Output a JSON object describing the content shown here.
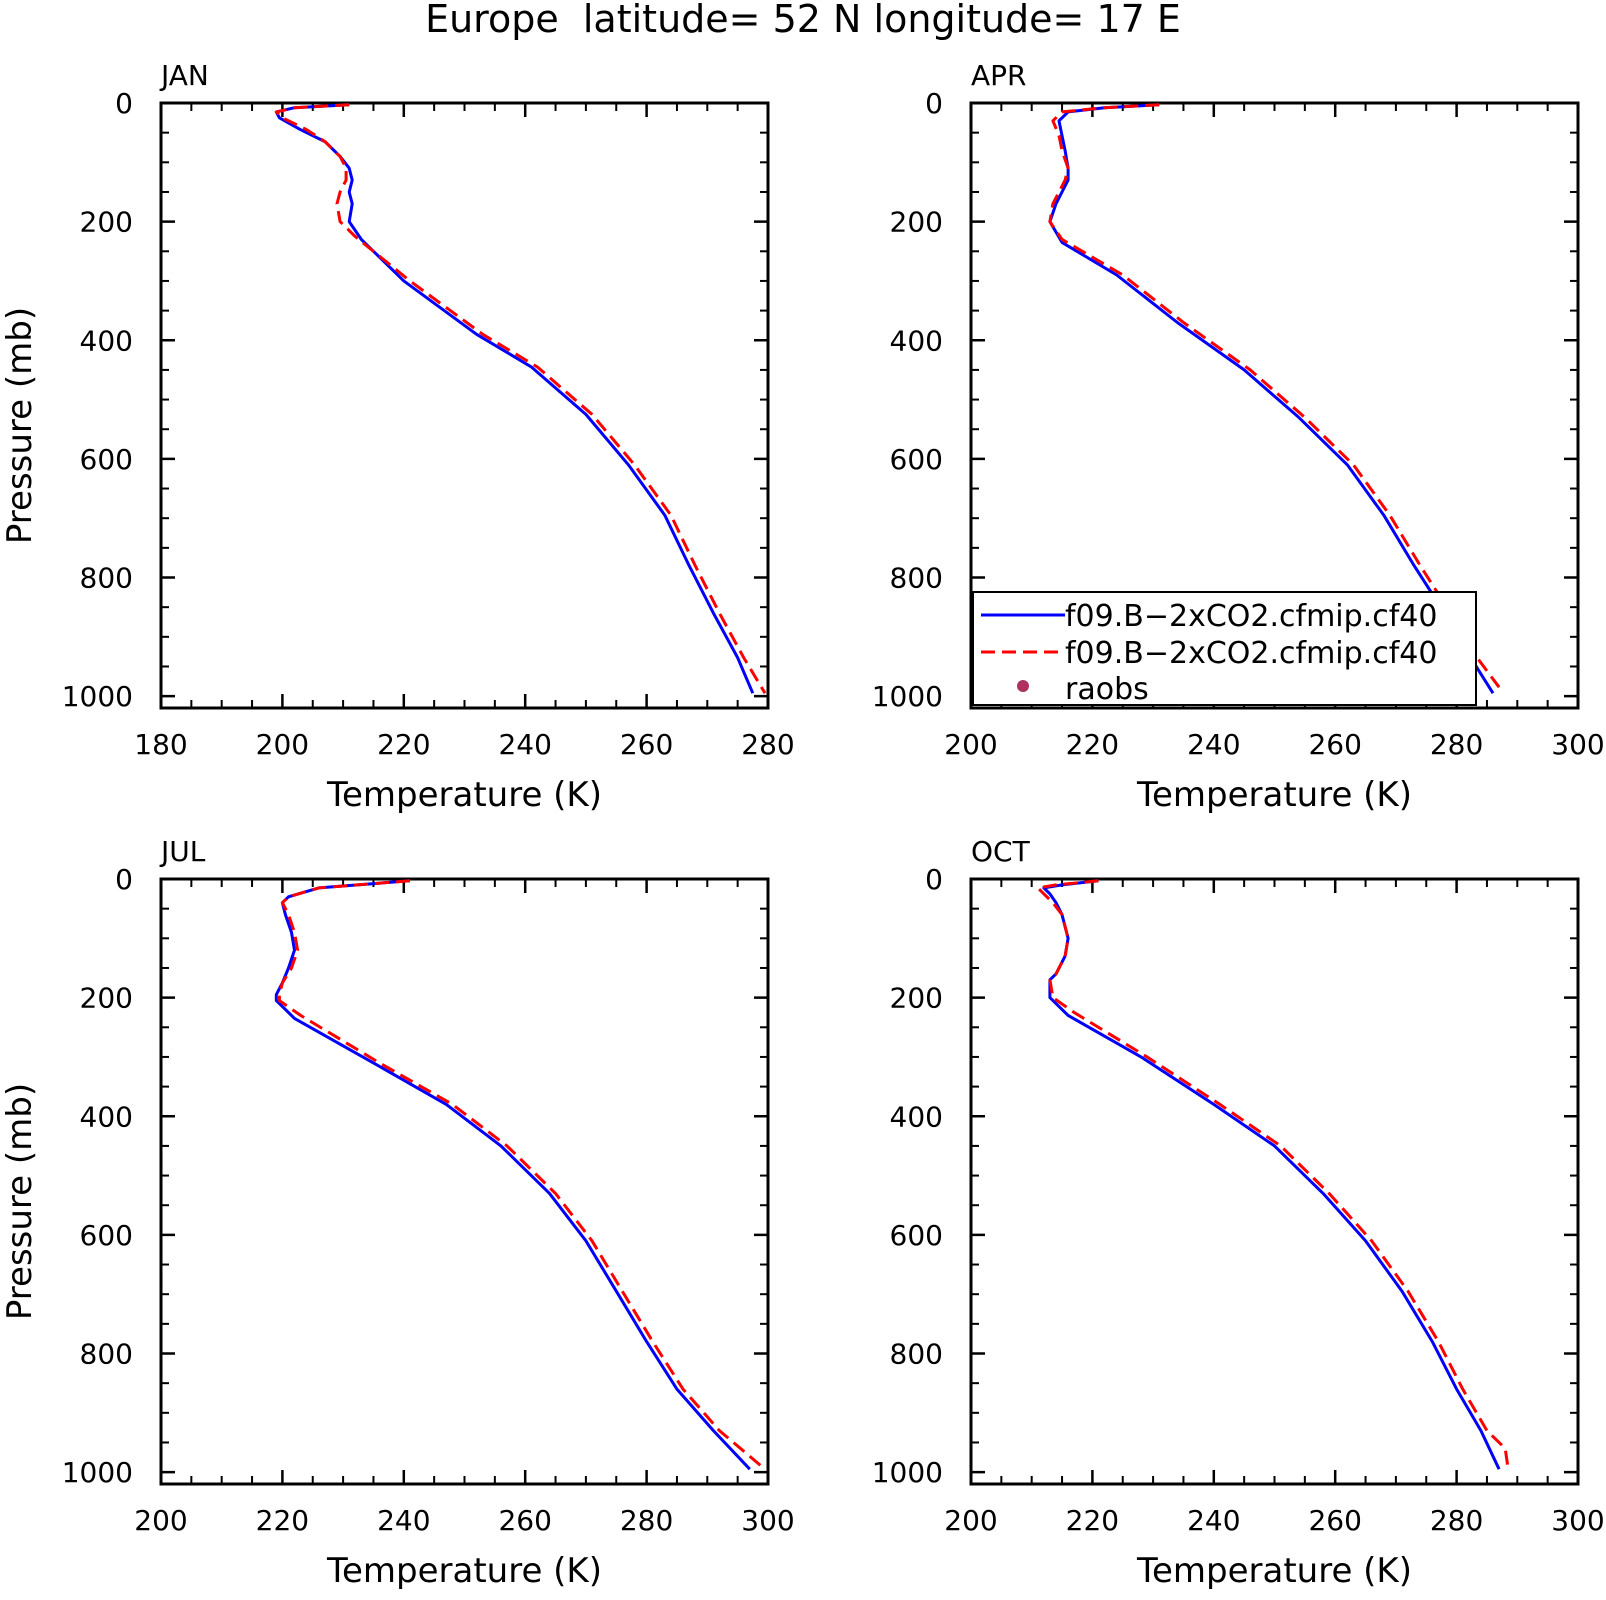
{
  "figure_title": "Europe  latitude= 52 N longitude= 17 E",
  "colors": {
    "series_solid": "#0000ff",
    "series_dashed": "#ff0000",
    "raobs_marker": "#b03060",
    "axis": "#000000"
  },
  "legend": {
    "placement": "inside APR panel, bottom-left",
    "entries": [
      {
        "label": "f09.B−2xCO2.cfmip.cf40",
        "style": "solid-blue-line"
      },
      {
        "label": "f09.B−2xCO2.cfmip.cf40",
        "style": "dashed-red-line"
      },
      {
        "label": "raobs",
        "style": "maroon-dot"
      }
    ]
  },
  "chart_data": [
    {
      "type": "line",
      "title": "JAN",
      "xlabel": "Temperature (K)",
      "ylabel": "Pressure (mb)",
      "xlim": [
        180,
        280
      ],
      "ylim": [
        1020,
        0
      ],
      "y_reversed": true,
      "xticks": [
        180,
        200,
        220,
        240,
        260,
        280
      ],
      "yticks": [
        0,
        200,
        400,
        600,
        800,
        1000
      ],
      "show_ylabel": true,
      "series": [
        {
          "style": "solid",
          "color": "#0000ff",
          "points": [
            [
              211,
              3
            ],
            [
              202,
              8
            ],
            [
              199,
              15
            ],
            [
              199.5,
              25
            ],
            [
              203,
              45
            ],
            [
              207,
              65
            ],
            [
              209.5,
              90
            ],
            [
              211,
              110
            ],
            [
              211.5,
              130
            ],
            [
              211,
              150
            ],
            [
              211.5,
              170
            ],
            [
              211,
              200
            ],
            [
              213,
              230
            ],
            [
              220,
              300
            ],
            [
              232,
              390
            ],
            [
              241,
              445
            ],
            [
              250,
              525
            ],
            [
              257,
              610
            ],
            [
              263,
              695
            ],
            [
              267,
              780
            ],
            [
              271,
              860
            ],
            [
              275,
              935
            ],
            [
              277.5,
              995
            ]
          ]
        },
        {
          "style": "dashed",
          "color": "#ff0000",
          "points": [
            [
              211,
              3
            ],
            [
              202,
              8
            ],
            [
              199,
              15
            ],
            [
              200,
              25
            ],
            [
              204,
              45
            ],
            [
              207,
              65
            ],
            [
              209.5,
              90
            ],
            [
              210.5,
              110
            ],
            [
              210.5,
              130
            ],
            [
              209.5,
              150
            ],
            [
              209,
              170
            ],
            [
              209.5,
              200
            ],
            [
              212,
              225
            ],
            [
              221,
              300
            ],
            [
              233,
              390
            ],
            [
              242,
              445
            ],
            [
              251,
              525
            ],
            [
              258,
              610
            ],
            [
              264,
              695
            ],
            [
              268,
              780
            ],
            [
              272,
              860
            ],
            [
              276,
              935
            ],
            [
              279.5,
              995
            ]
          ]
        }
      ]
    },
    {
      "type": "line",
      "title": "APR",
      "xlabel": "Temperature (K)",
      "ylabel": "",
      "xlim": [
        200,
        300
      ],
      "ylim": [
        1020,
        0
      ],
      "y_reversed": true,
      "xticks": [
        200,
        220,
        240,
        260,
        280,
        300
      ],
      "yticks": [
        0,
        200,
        400,
        600,
        800,
        1000
      ],
      "show_ylabel": false,
      "series": [
        {
          "style": "solid",
          "color": "#0000ff",
          "points": [
            [
              231,
              3
            ],
            [
              222,
              8
            ],
            [
              216,
              15
            ],
            [
              214.5,
              30
            ],
            [
              215,
              55
            ],
            [
              215.5,
              80
            ],
            [
              216,
              110
            ],
            [
              216,
              130
            ],
            [
              215,
              150
            ],
            [
              214,
              170
            ],
            [
              213,
              200
            ],
            [
              215,
              235
            ],
            [
              224,
              290
            ],
            [
              234,
              370
            ],
            [
              245,
              450
            ],
            [
              254,
              530
            ],
            [
              262,
              610
            ],
            [
              268,
              695
            ],
            [
              273,
              780
            ],
            [
              278,
              860
            ],
            [
              282,
              930
            ],
            [
              286,
              995
            ]
          ]
        },
        {
          "style": "dashed",
          "color": "#ff0000",
          "points": [
            [
              231,
              3
            ],
            [
              222,
              8
            ],
            [
              215,
              15
            ],
            [
              213.5,
              30
            ],
            [
              214.5,
              55
            ],
            [
              215,
              80
            ],
            [
              216,
              110
            ],
            [
              215.5,
              130
            ],
            [
              214.5,
              150
            ],
            [
              213.5,
              170
            ],
            [
              213,
              200
            ],
            [
              215,
              230
            ],
            [
              225,
              290
            ],
            [
              235,
              370
            ],
            [
              246,
              450
            ],
            [
              255,
              530
            ],
            [
              263,
              610
            ],
            [
              269,
              695
            ],
            [
              274,
              780
            ],
            [
              279,
              860
            ],
            [
              283,
              930
            ],
            [
              287,
              985
            ]
          ]
        }
      ]
    },
    {
      "type": "line",
      "title": "JUL",
      "xlabel": "Temperature (K)",
      "ylabel": "Pressure (mb)",
      "xlim": [
        200,
        300
      ],
      "ylim": [
        1020,
        0
      ],
      "y_reversed": true,
      "xticks": [
        200,
        220,
        240,
        260,
        280,
        300
      ],
      "yticks": [
        0,
        200,
        400,
        600,
        800,
        1000
      ],
      "show_ylabel": true,
      "series": [
        {
          "style": "solid",
          "color": "#0000ff",
          "points": [
            [
              241,
              3
            ],
            [
              226,
              15
            ],
            [
              221,
              30
            ],
            [
              220,
              40
            ],
            [
              220.5,
              60
            ],
            [
              221.5,
              90
            ],
            [
              222,
              120
            ],
            [
              221,
              150
            ],
            [
              220,
              175
            ],
            [
              219,
              195
            ],
            [
              219,
              205
            ],
            [
              222,
              235
            ],
            [
              235,
              310
            ],
            [
              247,
              380
            ],
            [
              256,
              450
            ],
            [
              264,
              530
            ],
            [
              270,
              610
            ],
            [
              275,
              695
            ],
            [
              280,
              780
            ],
            [
              285,
              860
            ],
            [
              291,
              930
            ],
            [
              297,
              995
            ]
          ]
        },
        {
          "style": "dashed",
          "color": "#ff0000",
          "points": [
            [
              241,
              3
            ],
            [
              226,
              15
            ],
            [
              221,
              30
            ],
            [
              220,
              40
            ],
            [
              221,
              60
            ],
            [
              222,
              90
            ],
            [
              222.5,
              120
            ],
            [
              221.5,
              150
            ],
            [
              220,
              175
            ],
            [
              219.5,
              195
            ],
            [
              219.5,
              205
            ],
            [
              223,
              230
            ],
            [
              236,
              310
            ],
            [
              248,
              380
            ],
            [
              257,
              450
            ],
            [
              265,
              530
            ],
            [
              271,
              610
            ],
            [
              276,
              695
            ],
            [
              281,
              780
            ],
            [
              286,
              860
            ],
            [
              292,
              930
            ],
            [
              299.5,
              995
            ]
          ]
        }
      ]
    },
    {
      "type": "line",
      "title": "OCT",
      "xlabel": "Temperature (K)",
      "ylabel": "",
      "xlim": [
        200,
        300
      ],
      "ylim": [
        1020,
        0
      ],
      "y_reversed": true,
      "xticks": [
        200,
        220,
        240,
        260,
        280,
        300
      ],
      "yticks": [
        0,
        200,
        400,
        600,
        800,
        1000
      ],
      "show_ylabel": false,
      "series": [
        {
          "style": "solid",
          "color": "#0000ff",
          "points": [
            [
              221,
              3
            ],
            [
              215,
              10
            ],
            [
              212,
              15
            ],
            [
              213,
              25
            ],
            [
              214,
              40
            ],
            [
              215,
              60
            ],
            [
              216,
              100
            ],
            [
              215.5,
              130
            ],
            [
              214,
              160
            ],
            [
              213,
              170
            ],
            [
              213,
              200
            ],
            [
              216,
              230
            ],
            [
              228,
              300
            ],
            [
              240,
              380
            ],
            [
              250,
              450
            ],
            [
              258,
              530
            ],
            [
              265,
              610
            ],
            [
              271,
              695
            ],
            [
              276,
              780
            ],
            [
              280,
              860
            ],
            [
              284,
              930
            ],
            [
              287,
              995
            ]
          ]
        },
        {
          "style": "dashed",
          "color": "#ff0000",
          "points": [
            [
              221,
              3
            ],
            [
              214,
              10
            ],
            [
              211,
              15
            ],
            [
              212,
              25
            ],
            [
              213.5,
              40
            ],
            [
              215,
              60
            ],
            [
              216,
              100
            ],
            [
              215.5,
              130
            ],
            [
              214,
              160
            ],
            [
              213,
              170
            ],
            [
              213.5,
              200
            ],
            [
              217,
              225
            ],
            [
              229,
              300
            ],
            [
              241,
              380
            ],
            [
              251,
              450
            ],
            [
              259,
              530
            ],
            [
              266,
              610
            ],
            [
              272,
              695
            ],
            [
              277,
              780
            ],
            [
              281,
              860
            ],
            [
              285,
              930
            ],
            [
              288,
              960
            ],
            [
              288.5,
              995
            ]
          ]
        }
      ]
    }
  ]
}
